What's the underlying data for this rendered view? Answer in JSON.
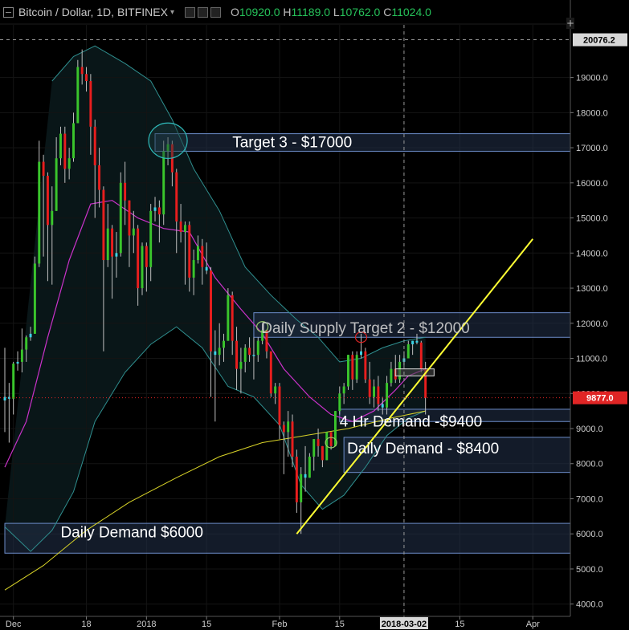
{
  "header": {
    "symbol": "Bitcoin / Dollar, 1D, BITFINEX",
    "open_label": "O",
    "open": "10920.0",
    "high_label": "H",
    "high": "11189.0",
    "low_label": "L",
    "low": "10762.0",
    "close_label": "C",
    "close": "11024.0"
  },
  "colors": {
    "background": "#000000",
    "up": "#3ac52c",
    "down": "#e81e1e",
    "doji": "#3bd3e6",
    "bollinger": "#2f8f8f",
    "ma_short": "#c932c9",
    "ma_long": "#d9d428",
    "trendline": "#ffff33",
    "zone_fill": "#23324a",
    "zone_stroke": "#6c8cc9",
    "price_tag": "#e02525",
    "axis_text": "#cccccc",
    "crosshair_tag": "#d8d8d8"
  },
  "chart_data": {
    "type": "candlestick",
    "title": "Bitcoin / Dollar, 1D, BITFINEX",
    "y_axis_ticks": [
      "4000.0",
      "5000.0",
      "6000.0",
      "7000.0",
      "8000.0",
      "9000.0",
      "10000.0",
      "11000.0",
      "12000.0",
      "13000.0",
      "14000.0",
      "15000.0",
      "16000.0",
      "17000.0",
      "18000.0",
      "19000.0"
    ],
    "ylim": [
      3650,
      20500
    ],
    "x_axis_ticks": [
      "Dec",
      "18",
      "2018",
      "15",
      "Feb",
      "15",
      "2018-03-02",
      "15",
      "Apr"
    ],
    "x_tick_dates": [
      "2017-12-01",
      "2017-12-18",
      "2018-01-01",
      "2018-01-15",
      "2018-02-01",
      "2018-02-15",
      "2018-03-02",
      "2018-03-15",
      "2018-04-01"
    ],
    "xlim": [
      "2017-11-29",
      "2018-04-09"
    ],
    "current_price": "9877.0",
    "crosshair_price": "20076.2",
    "crosshair_date": "2018-03-02",
    "candles": [
      {
        "d": "2017-11-29",
        "o": 9800,
        "h": 11300,
        "l": 8900,
        "c": 9900
      },
      {
        "d": "2017-11-30",
        "o": 9900,
        "h": 10300,
        "l": 8600,
        "c": 9850
      },
      {
        "d": "2017-12-01",
        "o": 9850,
        "h": 10900,
        "l": 9400,
        "c": 10850
      },
      {
        "d": "2017-12-02",
        "o": 10850,
        "h": 11200,
        "l": 10650,
        "c": 10900
      },
      {
        "d": "2017-12-03",
        "o": 10900,
        "h": 11850,
        "l": 10600,
        "c": 11250
      },
      {
        "d": "2017-12-04",
        "o": 11250,
        "h": 11650,
        "l": 10900,
        "c": 11600
      },
      {
        "d": "2017-12-05",
        "o": 11600,
        "h": 11900,
        "l": 11500,
        "c": 11700
      },
      {
        "d": "2017-12-06",
        "o": 11700,
        "h": 13900,
        "l": 11700,
        "c": 13700
      },
      {
        "d": "2017-12-07",
        "o": 13700,
        "h": 17200,
        "l": 13600,
        "c": 16600
      },
      {
        "d": "2017-12-08",
        "o": 16600,
        "h": 16800,
        "l": 13900,
        "c": 16200
      },
      {
        "d": "2017-12-09",
        "o": 16200,
        "h": 16300,
        "l": 13200,
        "c": 14800
      },
      {
        "d": "2017-12-10",
        "o": 14800,
        "h": 15900,
        "l": 13100,
        "c": 15200
      },
      {
        "d": "2017-12-11",
        "o": 15200,
        "h": 17300,
        "l": 15200,
        "c": 16700
      },
      {
        "d": "2017-12-12",
        "o": 16700,
        "h": 17600,
        "l": 16500,
        "c": 17400
      },
      {
        "d": "2017-12-13",
        "o": 17400,
        "h": 17600,
        "l": 16000,
        "c": 16400
      },
      {
        "d": "2017-12-14",
        "o": 16400,
        "h": 17000,
        "l": 16100,
        "c": 16700
      },
      {
        "d": "2017-12-15",
        "o": 16700,
        "h": 18000,
        "l": 16600,
        "c": 17700
      },
      {
        "d": "2017-12-16",
        "o": 17700,
        "h": 19500,
        "l": 17700,
        "c": 19300
      },
      {
        "d": "2017-12-17",
        "o": 19300,
        "h": 19800,
        "l": 18800,
        "c": 19100
      },
      {
        "d": "2017-12-18",
        "o": 19100,
        "h": 19300,
        "l": 18600,
        "c": 18900
      },
      {
        "d": "2017-12-19",
        "o": 18900,
        "h": 19100,
        "l": 16800,
        "c": 17600
      },
      {
        "d": "2017-12-20",
        "o": 17600,
        "h": 17800,
        "l": 15000,
        "c": 16500
      },
      {
        "d": "2017-12-21",
        "o": 16500,
        "h": 17000,
        "l": 15300,
        "c": 15800
      },
      {
        "d": "2017-12-22",
        "o": 15800,
        "h": 15900,
        "l": 11200,
        "c": 13800
      },
      {
        "d": "2017-12-23",
        "o": 13800,
        "h": 15400,
        "l": 13600,
        "c": 14700
      },
      {
        "d": "2017-12-24",
        "o": 14700,
        "h": 14800,
        "l": 12700,
        "c": 13900
      },
      {
        "d": "2017-12-25",
        "o": 13900,
        "h": 14600,
        "l": 13300,
        "c": 14000
      },
      {
        "d": "2017-12-26",
        "o": 14000,
        "h": 16300,
        "l": 13900,
        "c": 16000
      },
      {
        "d": "2017-12-27",
        "o": 16000,
        "h": 16600,
        "l": 14800,
        "c": 15500
      },
      {
        "d": "2017-12-28",
        "o": 15500,
        "h": 15500,
        "l": 13600,
        "c": 14500
      },
      {
        "d": "2017-12-29",
        "o": 14500,
        "h": 15200,
        "l": 14000,
        "c": 14700
      },
      {
        "d": "2017-12-30",
        "o": 14700,
        "h": 14800,
        "l": 12500,
        "c": 13000
      },
      {
        "d": "2017-12-31",
        "o": 13000,
        "h": 14300,
        "l": 12800,
        "c": 14200
      },
      {
        "d": "2018-01-01",
        "o": 14200,
        "h": 14300,
        "l": 12900,
        "c": 13600
      },
      {
        "d": "2018-01-02",
        "o": 13600,
        "h": 15400,
        "l": 13200,
        "c": 15200
      },
      {
        "d": "2018-01-03",
        "o": 15200,
        "h": 15600,
        "l": 14900,
        "c": 15300
      },
      {
        "d": "2018-01-04",
        "o": 15300,
        "h": 15500,
        "l": 14300,
        "c": 15100
      },
      {
        "d": "2018-01-05",
        "o": 15100,
        "h": 17200,
        "l": 14800,
        "c": 16900
      },
      {
        "d": "2018-01-06",
        "o": 16900,
        "h": 17300,
        "l": 16500,
        "c": 17100
      },
      {
        "d": "2018-01-07",
        "o": 17100,
        "h": 17200,
        "l": 15900,
        "c": 16300
      },
      {
        "d": "2018-01-08",
        "o": 16300,
        "h": 16400,
        "l": 14000,
        "c": 14900
      },
      {
        "d": "2018-01-09",
        "o": 14900,
        "h": 15400,
        "l": 14300,
        "c": 14600
      },
      {
        "d": "2018-01-10",
        "o": 14600,
        "h": 14900,
        "l": 13100,
        "c": 14800
      },
      {
        "d": "2018-01-11",
        "o": 14800,
        "h": 14900,
        "l": 12900,
        "c": 13300
      },
      {
        "d": "2018-01-12",
        "o": 13300,
        "h": 14100,
        "l": 12800,
        "c": 13800
      },
      {
        "d": "2018-01-13",
        "o": 13800,
        "h": 14500,
        "l": 13700,
        "c": 14200
      },
      {
        "d": "2018-01-14",
        "o": 14200,
        "h": 14400,
        "l": 13100,
        "c": 13600
      },
      {
        "d": "2018-01-15",
        "o": 13600,
        "h": 14300,
        "l": 13400,
        "c": 13500
      },
      {
        "d": "2018-01-16",
        "o": 13500,
        "h": 13600,
        "l": 9900,
        "c": 11200
      },
      {
        "d": "2018-01-17",
        "o": 11200,
        "h": 11800,
        "l": 9200,
        "c": 11100
      },
      {
        "d": "2018-01-18",
        "o": 11100,
        "h": 12000,
        "l": 10800,
        "c": 11300
      },
      {
        "d": "2018-01-19",
        "o": 11300,
        "h": 11700,
        "l": 10900,
        "c": 11500
      },
      {
        "d": "2018-01-20",
        "o": 11500,
        "h": 13000,
        "l": 11500,
        "c": 12800
      },
      {
        "d": "2018-01-21",
        "o": 12800,
        "h": 12900,
        "l": 11100,
        "c": 11500
      },
      {
        "d": "2018-01-22",
        "o": 11500,
        "h": 11900,
        "l": 10100,
        "c": 10700
      },
      {
        "d": "2018-01-23",
        "o": 10700,
        "h": 11300,
        "l": 10000,
        "c": 10900
      },
      {
        "d": "2018-01-24",
        "o": 10900,
        "h": 11400,
        "l": 10600,
        "c": 11300
      },
      {
        "d": "2018-01-25",
        "o": 11300,
        "h": 11600,
        "l": 10900,
        "c": 11100
      },
      {
        "d": "2018-01-26",
        "o": 11100,
        "h": 11600,
        "l": 10400,
        "c": 11100
      },
      {
        "d": "2018-01-27",
        "o": 11100,
        "h": 11600,
        "l": 10900,
        "c": 11500
      },
      {
        "d": "2018-01-28",
        "o": 11500,
        "h": 12000,
        "l": 11400,
        "c": 11800
      },
      {
        "d": "2018-01-29",
        "o": 11800,
        "h": 11800,
        "l": 11000,
        "c": 11200
      },
      {
        "d": "2018-01-30",
        "o": 11200,
        "h": 11200,
        "l": 9900,
        "c": 10000
      },
      {
        "d": "2018-01-31",
        "o": 10000,
        "h": 10300,
        "l": 9700,
        "c": 10200
      },
      {
        "d": "2018-02-01",
        "o": 10200,
        "h": 10300,
        "l": 8700,
        "c": 9100
      },
      {
        "d": "2018-02-02",
        "o": 9100,
        "h": 9200,
        "l": 7700,
        "c": 8900
      },
      {
        "d": "2018-02-03",
        "o": 8900,
        "h": 9500,
        "l": 8200,
        "c": 9200
      },
      {
        "d": "2018-02-04",
        "o": 9200,
        "h": 9400,
        "l": 7900,
        "c": 8200
      },
      {
        "d": "2018-02-05",
        "o": 8200,
        "h": 8400,
        "l": 6600,
        "c": 6900
      },
      {
        "d": "2018-02-06",
        "o": 6900,
        "h": 7900,
        "l": 6000,
        "c": 7700
      },
      {
        "d": "2018-02-07",
        "o": 7700,
        "h": 8500,
        "l": 7200,
        "c": 7600
      },
      {
        "d": "2018-02-08",
        "o": 7600,
        "h": 8300,
        "l": 7600,
        "c": 8200
      },
      {
        "d": "2018-02-09",
        "o": 8200,
        "h": 8700,
        "l": 7800,
        "c": 8700
      },
      {
        "d": "2018-02-10",
        "o": 8700,
        "h": 9000,
        "l": 8200,
        "c": 8500
      },
      {
        "d": "2018-02-11",
        "o": 8500,
        "h": 8500,
        "l": 7900,
        "c": 8100
      },
      {
        "d": "2018-02-12",
        "o": 8100,
        "h": 8900,
        "l": 8100,
        "c": 8900
      },
      {
        "d": "2018-02-13",
        "o": 8900,
        "h": 8900,
        "l": 8400,
        "c": 8500
      },
      {
        "d": "2018-02-14",
        "o": 8500,
        "h": 9500,
        "l": 8500,
        "c": 9500
      },
      {
        "d": "2018-02-15",
        "o": 9500,
        "h": 10200,
        "l": 9400,
        "c": 10000
      },
      {
        "d": "2018-02-16",
        "o": 10000,
        "h": 10300,
        "l": 9700,
        "c": 10200
      },
      {
        "d": "2018-02-17",
        "o": 10200,
        "h": 11100,
        "l": 10100,
        "c": 11100
      },
      {
        "d": "2018-02-18",
        "o": 11100,
        "h": 11200,
        "l": 10100,
        "c": 10400
      },
      {
        "d": "2018-02-19",
        "o": 10400,
        "h": 11200,
        "l": 10300,
        "c": 11100
      },
      {
        "d": "2018-02-20",
        "o": 11100,
        "h": 11700,
        "l": 11000,
        "c": 11200
      },
      {
        "d": "2018-02-21",
        "o": 11200,
        "h": 11300,
        "l": 10300,
        "c": 10400
      },
      {
        "d": "2018-02-22",
        "o": 10400,
        "h": 10900,
        "l": 9700,
        "c": 9900
      },
      {
        "d": "2018-02-23",
        "o": 9900,
        "h": 10400,
        "l": 9600,
        "c": 10200
      },
      {
        "d": "2018-02-24",
        "o": 10200,
        "h": 10500,
        "l": 9500,
        "c": 9700
      },
      {
        "d": "2018-02-25",
        "o": 9700,
        "h": 9900,
        "l": 9400,
        "c": 9600
      },
      {
        "d": "2018-02-26",
        "o": 9600,
        "h": 10500,
        "l": 9400,
        "c": 10300
      },
      {
        "d": "2018-02-27",
        "o": 10300,
        "h": 10900,
        "l": 10200,
        "c": 10700
      },
      {
        "d": "2018-02-28",
        "o": 10700,
        "h": 11100,
        "l": 10300,
        "c": 10400
      },
      {
        "d": "2018-03-01",
        "o": 10400,
        "h": 11100,
        "l": 10300,
        "c": 10900
      },
      {
        "d": "2018-03-02",
        "o": 10900,
        "h": 11200,
        "l": 10800,
        "c": 11000
      },
      {
        "d": "2018-03-03",
        "o": 11000,
        "h": 11500,
        "l": 11000,
        "c": 11400
      },
      {
        "d": "2018-03-04",
        "o": 11400,
        "h": 11500,
        "l": 11100,
        "c": 11500
      },
      {
        "d": "2018-03-05",
        "o": 11500,
        "h": 11700,
        "l": 11400,
        "c": 11450
      },
      {
        "d": "2018-03-06",
        "o": 11450,
        "h": 11500,
        "l": 10600,
        "c": 10700
      },
      {
        "d": "2018-03-07",
        "o": 10700,
        "h": 10900,
        "l": 9400,
        "c": 9877
      }
    ],
    "bollinger_upper": [
      {
        "d": "2017-12-10",
        "v": 18900
      },
      {
        "d": "2017-12-15",
        "v": 19600
      },
      {
        "d": "2017-12-20",
        "v": 19900
      },
      {
        "d": "2017-12-27",
        "v": 19400
      },
      {
        "d": "2018-01-02",
        "v": 18900
      },
      {
        "d": "2018-01-07",
        "v": 17800
      },
      {
        "d": "2018-01-12",
        "v": 16400
      },
      {
        "d": "2018-01-18",
        "v": 15200
      },
      {
        "d": "2018-01-24",
        "v": 13600
      },
      {
        "d": "2018-01-30",
        "v": 12800
      },
      {
        "d": "2018-02-05",
        "v": 12100
      },
      {
        "d": "2018-02-10",
        "v": 11600
      },
      {
        "d": "2018-02-15",
        "v": 10900
      },
      {
        "d": "2018-02-20",
        "v": 11000
      },
      {
        "d": "2018-02-25",
        "v": 11300
      },
      {
        "d": "2018-03-02",
        "v": 11500
      },
      {
        "d": "2018-03-07",
        "v": 11600
      }
    ],
    "bollinger_lower": [
      {
        "d": "2017-11-29",
        "v": 6200
      },
      {
        "d": "2017-12-05",
        "v": 5500
      },
      {
        "d": "2017-12-10",
        "v": 6100
      },
      {
        "d": "2017-12-15",
        "v": 7200
      },
      {
        "d": "2017-12-20",
        "v": 9200
      },
      {
        "d": "2017-12-27",
        "v": 10600
      },
      {
        "d": "2018-01-02",
        "v": 11400
      },
      {
        "d": "2018-01-08",
        "v": 11900
      },
      {
        "d": "2018-01-14",
        "v": 11300
      },
      {
        "d": "2018-01-20",
        "v": 10200
      },
      {
        "d": "2018-01-26",
        "v": 9900
      },
      {
        "d": "2018-02-01",
        "v": 9100
      },
      {
        "d": "2018-02-06",
        "v": 7400
      },
      {
        "d": "2018-02-11",
        "v": 6700
      },
      {
        "d": "2018-02-16",
        "v": 7100
      },
      {
        "d": "2018-02-21",
        "v": 7900
      },
      {
        "d": "2018-02-26",
        "v": 8800
      },
      {
        "d": "2018-03-03",
        "v": 9300
      },
      {
        "d": "2018-03-07",
        "v": 9500
      }
    ],
    "ma_short": [
      {
        "d": "2017-11-29",
        "v": 7900
      },
      {
        "d": "2017-12-04",
        "v": 9200
      },
      {
        "d": "2017-12-09",
        "v": 11600
      },
      {
        "d": "2017-12-14",
        "v": 13800
      },
      {
        "d": "2017-12-19",
        "v": 15400
      },
      {
        "d": "2017-12-24",
        "v": 15500
      },
      {
        "d": "2017-12-30",
        "v": 15000
      },
      {
        "d": "2018-01-05",
        "v": 14700
      },
      {
        "d": "2018-01-11",
        "v": 14600
      },
      {
        "d": "2018-01-17",
        "v": 13300
      },
      {
        "d": "2018-01-23",
        "v": 12400
      },
      {
        "d": "2018-01-28",
        "v": 11700
      },
      {
        "d": "2018-02-02",
        "v": 10700
      },
      {
        "d": "2018-02-08",
        "v": 9900
      },
      {
        "d": "2018-02-13",
        "v": 9400
      },
      {
        "d": "2018-02-18",
        "v": 9200
      },
      {
        "d": "2018-02-23",
        "v": 9500
      },
      {
        "d": "2018-02-28",
        "v": 10100
      },
      {
        "d": "2018-03-03",
        "v": 10500
      },
      {
        "d": "2018-03-07",
        "v": 10700
      }
    ],
    "ma_long": [
      {
        "d": "2017-11-29",
        "v": 4400
      },
      {
        "d": "2017-12-08",
        "v": 5100
      },
      {
        "d": "2017-12-18",
        "v": 6100
      },
      {
        "d": "2017-12-28",
        "v": 6900
      },
      {
        "d": "2018-01-08",
        "v": 7600
      },
      {
        "d": "2018-01-18",
        "v": 8200
      },
      {
        "d": "2018-01-28",
        "v": 8600
      },
      {
        "d": "2018-02-07",
        "v": 8800
      },
      {
        "d": "2018-02-17",
        "v": 9000
      },
      {
        "d": "2018-02-27",
        "v": 9300
      },
      {
        "d": "2018-03-07",
        "v": 9500
      }
    ],
    "trendline": {
      "from": {
        "d": "2018-02-05",
        "v": 6000
      },
      "to": {
        "d": "2018-04-01",
        "v": 14400
      }
    },
    "zones": [
      {
        "label": "Target 3 - $17000",
        "from": "2018-01-03",
        "low": 16900,
        "high": 17400
      },
      {
        "label": "Daily Supply Target 2 - $12000",
        "from": "2018-01-26",
        "low": 11600,
        "high": 12300
      },
      {
        "label": "4 Hr Demand -$9400",
        "from": "2018-02-15",
        "low": 9200,
        "high": 9550
      },
      {
        "label": "Daily Demand - $8400",
        "from": "2018-02-16",
        "low": 7750,
        "high": 8750
      },
      {
        "label": "Daily Demand $6000",
        "from": "2017-11-29",
        "low": 5450,
        "high": 6300
      }
    ],
    "current_candle_marker": {
      "label": "",
      "low": 10500,
      "high": 10700
    },
    "circles": [
      {
        "d": "2018-01-06",
        "v": 17200,
        "r": "large"
      },
      {
        "d": "2018-01-28",
        "v": 11900,
        "r": "small"
      },
      {
        "d": "2018-02-20",
        "v": 11600,
        "r": "small"
      },
      {
        "d": "2018-02-13",
        "v": 8600,
        "r": "small"
      }
    ]
  }
}
